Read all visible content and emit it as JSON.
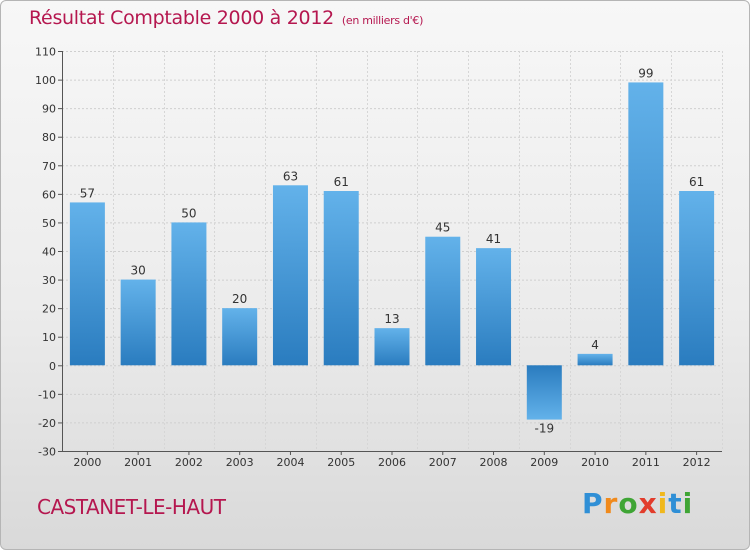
{
  "chart_data": {
    "type": "bar",
    "title": "Résultat Comptable 2000 à 2012",
    "subtitle": "(en milliers d'€)",
    "categories": [
      "2000",
      "2001",
      "2002",
      "2003",
      "2004",
      "2005",
      "2006",
      "2007",
      "2008",
      "2009",
      "2010",
      "2011",
      "2012"
    ],
    "values": [
      57,
      30,
      50,
      20,
      63,
      61,
      13,
      45,
      41,
      -19,
      4,
      99,
      61
    ],
    "value_labels": [
      "57",
      "30",
      "50",
      "20",
      "63",
      "61",
      "13",
      "45",
      "41",
      "-19",
      "4",
      "99",
      "61"
    ],
    "yticks": [
      "110",
      "100",
      "90",
      "80",
      "70",
      "60",
      "50",
      "40",
      "30",
      "20",
      "10",
      "0",
      "-10",
      "-20",
      "-30"
    ],
    "ylim": [
      -30,
      110
    ],
    "ystep": 10,
    "xlabel": "",
    "ylabel": "",
    "grid": true,
    "colors": {
      "bar_light": "#63b2ea",
      "bar_dark": "#2a7cbf",
      "title": "#b5174f"
    }
  },
  "footer": {
    "city": "CASTANET-LE-HAUT"
  },
  "logo": {
    "letters": [
      "P",
      "r",
      "o",
      "x",
      "i",
      "t",
      "i"
    ],
    "colors": [
      "#2f8fd6",
      "#f08a1c",
      "#3fa535",
      "#e23c2b",
      "#f0b81c",
      "#2f8fd6",
      "#3fa535"
    ]
  }
}
